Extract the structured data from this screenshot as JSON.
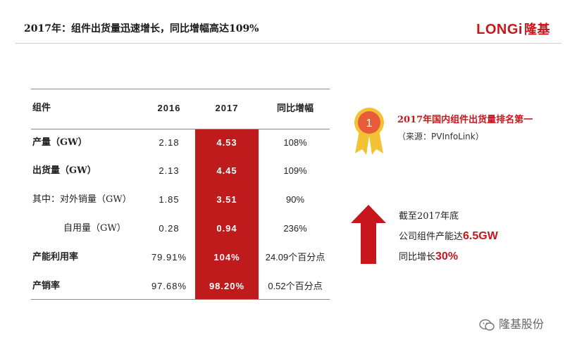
{
  "header": {
    "title": "2017年：组件出货量迅速增长，同比增幅高达109%",
    "logo_en": "LONGi",
    "logo_cn": "隆基"
  },
  "table": {
    "headers": [
      "组件",
      "2016",
      "2017",
      "同比增幅"
    ],
    "rows": [
      {
        "label": "产量（GW）",
        "y2016": "2.18",
        "y2017": "4.53",
        "growth": "108%"
      },
      {
        "label": "出货量（GW）",
        "y2016": "2.13",
        "y2017": "4.45",
        "growth": "109%"
      },
      {
        "label": "其中：对外销量（GW）",
        "y2016": "1.85",
        "y2017": "3.51",
        "growth": "90%"
      },
      {
        "label": "自用量（GW）",
        "y2016": "0.28",
        "y2017": "0.94",
        "growth": "236%"
      },
      {
        "label": "产能利用率",
        "y2016": "79.91%",
        "y2017": "104%",
        "growth": "24.09个百分点"
      },
      {
        "label": "产销率",
        "y2016": "97.68%",
        "y2017": "98.20%",
        "growth": "0.52个百分点"
      }
    ],
    "highlight_color": "#bf1a1c"
  },
  "ranking": {
    "medal_number": "1",
    "title": "2017年国内组件出货量排名第一",
    "source": "（来源：PVInfoLink）"
  },
  "notes": {
    "line1": "截至2017年底",
    "line2_prefix": "公司组件产能达",
    "line2_value": "6.5GW",
    "line3_prefix": "同比增长",
    "line3_value": "30%"
  },
  "watermark": {
    "text": "隆基股份"
  },
  "colors": {
    "brand_red": "#c8161d"
  }
}
